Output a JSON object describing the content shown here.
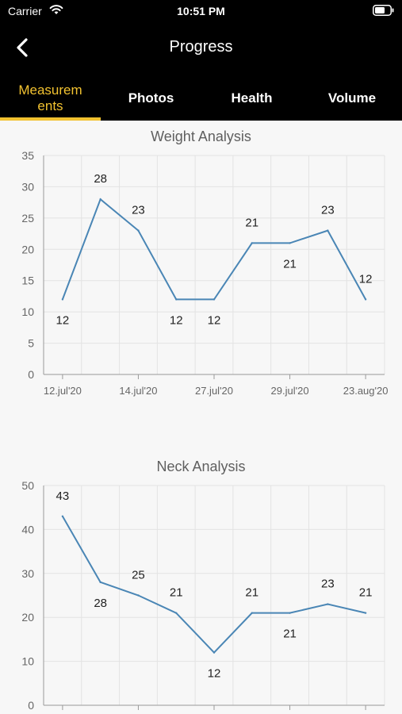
{
  "status_bar": {
    "carrier": "Carrier",
    "time": "10:51 PM"
  },
  "nav": {
    "title": "Progress"
  },
  "tabs": [
    {
      "label": "Measurem\nents",
      "active": true
    },
    {
      "label": "Photos",
      "active": false
    },
    {
      "label": "Health",
      "active": false
    },
    {
      "label": "Volume",
      "active": false
    }
  ],
  "colors": {
    "accent": "#f2c230",
    "line": "#4a86b5",
    "header_bg": "#000000"
  },
  "chart_data": [
    {
      "type": "line",
      "title": "Weight Analysis",
      "ylim": [
        0,
        35
      ],
      "yticks": [
        0,
        5,
        10,
        15,
        20,
        25,
        30,
        35
      ],
      "xtick_labels": [
        "12.jul'20",
        "14.jul'20",
        "27.jul'20",
        "29.jul'20",
        "23.aug'20"
      ],
      "values": [
        12,
        28,
        23,
        12,
        12,
        21,
        21,
        23,
        12
      ],
      "label_position": [
        "below",
        "above",
        "above",
        "below",
        "below",
        "above",
        "below",
        "above",
        "above"
      ],
      "grid": true
    },
    {
      "type": "line",
      "title": "Neck Analysis",
      "ylim": [
        0,
        50
      ],
      "yticks": [
        0,
        10,
        20,
        30,
        40,
        50
      ],
      "xtick_labels": [],
      "values": [
        43,
        28,
        25,
        21,
        12,
        21,
        21,
        23,
        21
      ],
      "label_position": [
        "above",
        "below",
        "above",
        "above",
        "below",
        "above",
        "below",
        "above",
        "above"
      ],
      "grid": true
    }
  ]
}
